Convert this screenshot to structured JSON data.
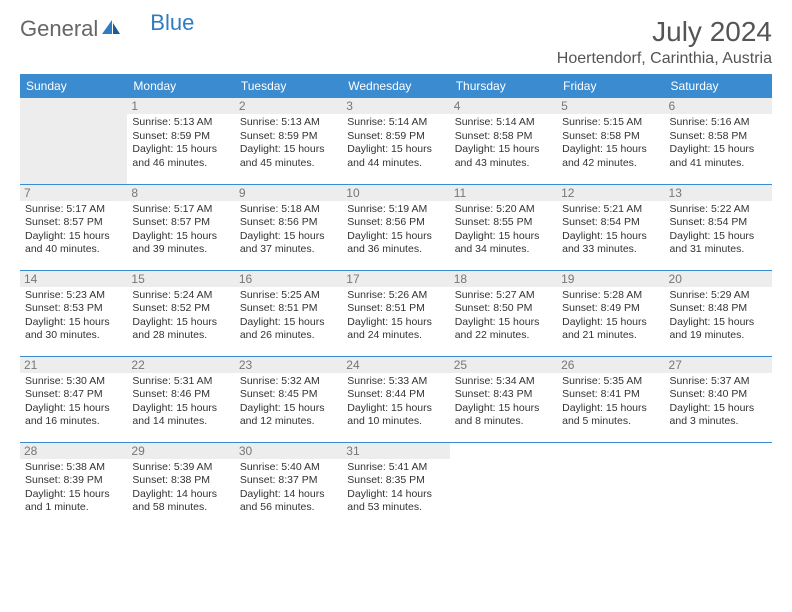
{
  "brand": {
    "part1": "General",
    "part2": "Blue"
  },
  "title": "July 2024",
  "location": "Hoertendorf, Carinthia, Austria",
  "header_color": "#3b8bd0",
  "divider_color": "#3b8bd0",
  "daynum_bg": "#ededed",
  "text_color": "#333333",
  "days": [
    "Sunday",
    "Monday",
    "Tuesday",
    "Wednesday",
    "Thursday",
    "Friday",
    "Saturday"
  ],
  "weeks": [
    [
      null,
      {
        "n": "1",
        "sunrise": "Sunrise: 5:13 AM",
        "sunset": "Sunset: 8:59 PM",
        "d1": "Daylight: 15 hours",
        "d2": "and 46 minutes."
      },
      {
        "n": "2",
        "sunrise": "Sunrise: 5:13 AM",
        "sunset": "Sunset: 8:59 PM",
        "d1": "Daylight: 15 hours",
        "d2": "and 45 minutes."
      },
      {
        "n": "3",
        "sunrise": "Sunrise: 5:14 AM",
        "sunset": "Sunset: 8:59 PM",
        "d1": "Daylight: 15 hours",
        "d2": "and 44 minutes."
      },
      {
        "n": "4",
        "sunrise": "Sunrise: 5:14 AM",
        "sunset": "Sunset: 8:58 PM",
        "d1": "Daylight: 15 hours",
        "d2": "and 43 minutes."
      },
      {
        "n": "5",
        "sunrise": "Sunrise: 5:15 AM",
        "sunset": "Sunset: 8:58 PM",
        "d1": "Daylight: 15 hours",
        "d2": "and 42 minutes."
      },
      {
        "n": "6",
        "sunrise": "Sunrise: 5:16 AM",
        "sunset": "Sunset: 8:58 PM",
        "d1": "Daylight: 15 hours",
        "d2": "and 41 minutes."
      }
    ],
    [
      {
        "n": "7",
        "sunrise": "Sunrise: 5:17 AM",
        "sunset": "Sunset: 8:57 PM",
        "d1": "Daylight: 15 hours",
        "d2": "and 40 minutes."
      },
      {
        "n": "8",
        "sunrise": "Sunrise: 5:17 AM",
        "sunset": "Sunset: 8:57 PM",
        "d1": "Daylight: 15 hours",
        "d2": "and 39 minutes."
      },
      {
        "n": "9",
        "sunrise": "Sunrise: 5:18 AM",
        "sunset": "Sunset: 8:56 PM",
        "d1": "Daylight: 15 hours",
        "d2": "and 37 minutes."
      },
      {
        "n": "10",
        "sunrise": "Sunrise: 5:19 AM",
        "sunset": "Sunset: 8:56 PM",
        "d1": "Daylight: 15 hours",
        "d2": "and 36 minutes."
      },
      {
        "n": "11",
        "sunrise": "Sunrise: 5:20 AM",
        "sunset": "Sunset: 8:55 PM",
        "d1": "Daylight: 15 hours",
        "d2": "and 34 minutes."
      },
      {
        "n": "12",
        "sunrise": "Sunrise: 5:21 AM",
        "sunset": "Sunset: 8:54 PM",
        "d1": "Daylight: 15 hours",
        "d2": "and 33 minutes."
      },
      {
        "n": "13",
        "sunrise": "Sunrise: 5:22 AM",
        "sunset": "Sunset: 8:54 PM",
        "d1": "Daylight: 15 hours",
        "d2": "and 31 minutes."
      }
    ],
    [
      {
        "n": "14",
        "sunrise": "Sunrise: 5:23 AM",
        "sunset": "Sunset: 8:53 PM",
        "d1": "Daylight: 15 hours",
        "d2": "and 30 minutes."
      },
      {
        "n": "15",
        "sunrise": "Sunrise: 5:24 AM",
        "sunset": "Sunset: 8:52 PM",
        "d1": "Daylight: 15 hours",
        "d2": "and 28 minutes."
      },
      {
        "n": "16",
        "sunrise": "Sunrise: 5:25 AM",
        "sunset": "Sunset: 8:51 PM",
        "d1": "Daylight: 15 hours",
        "d2": "and 26 minutes."
      },
      {
        "n": "17",
        "sunrise": "Sunrise: 5:26 AM",
        "sunset": "Sunset: 8:51 PM",
        "d1": "Daylight: 15 hours",
        "d2": "and 24 minutes."
      },
      {
        "n": "18",
        "sunrise": "Sunrise: 5:27 AM",
        "sunset": "Sunset: 8:50 PM",
        "d1": "Daylight: 15 hours",
        "d2": "and 22 minutes."
      },
      {
        "n": "19",
        "sunrise": "Sunrise: 5:28 AM",
        "sunset": "Sunset: 8:49 PM",
        "d1": "Daylight: 15 hours",
        "d2": "and 21 minutes."
      },
      {
        "n": "20",
        "sunrise": "Sunrise: 5:29 AM",
        "sunset": "Sunset: 8:48 PM",
        "d1": "Daylight: 15 hours",
        "d2": "and 19 minutes."
      }
    ],
    [
      {
        "n": "21",
        "sunrise": "Sunrise: 5:30 AM",
        "sunset": "Sunset: 8:47 PM",
        "d1": "Daylight: 15 hours",
        "d2": "and 16 minutes."
      },
      {
        "n": "22",
        "sunrise": "Sunrise: 5:31 AM",
        "sunset": "Sunset: 8:46 PM",
        "d1": "Daylight: 15 hours",
        "d2": "and 14 minutes."
      },
      {
        "n": "23",
        "sunrise": "Sunrise: 5:32 AM",
        "sunset": "Sunset: 8:45 PM",
        "d1": "Daylight: 15 hours",
        "d2": "and 12 minutes."
      },
      {
        "n": "24",
        "sunrise": "Sunrise: 5:33 AM",
        "sunset": "Sunset: 8:44 PM",
        "d1": "Daylight: 15 hours",
        "d2": "and 10 minutes."
      },
      {
        "n": "25",
        "sunrise": "Sunrise: 5:34 AM",
        "sunset": "Sunset: 8:43 PM",
        "d1": "Daylight: 15 hours",
        "d2": "and 8 minutes."
      },
      {
        "n": "26",
        "sunrise": "Sunrise: 5:35 AM",
        "sunset": "Sunset: 8:41 PM",
        "d1": "Daylight: 15 hours",
        "d2": "and 5 minutes."
      },
      {
        "n": "27",
        "sunrise": "Sunrise: 5:37 AM",
        "sunset": "Sunset: 8:40 PM",
        "d1": "Daylight: 15 hours",
        "d2": "and 3 minutes."
      }
    ],
    [
      {
        "n": "28",
        "sunrise": "Sunrise: 5:38 AM",
        "sunset": "Sunset: 8:39 PM",
        "d1": "Daylight: 15 hours",
        "d2": "and 1 minute."
      },
      {
        "n": "29",
        "sunrise": "Sunrise: 5:39 AM",
        "sunset": "Sunset: 8:38 PM",
        "d1": "Daylight: 14 hours",
        "d2": "and 58 minutes."
      },
      {
        "n": "30",
        "sunrise": "Sunrise: 5:40 AM",
        "sunset": "Sunset: 8:37 PM",
        "d1": "Daylight: 14 hours",
        "d2": "and 56 minutes."
      },
      {
        "n": "31",
        "sunrise": "Sunrise: 5:41 AM",
        "sunset": "Sunset: 8:35 PM",
        "d1": "Daylight: 14 hours",
        "d2": "and 53 minutes."
      },
      null,
      null,
      null
    ]
  ]
}
